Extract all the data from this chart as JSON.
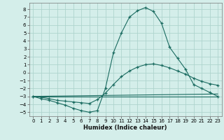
{
  "xlabel": "Humidex (Indice chaleur)",
  "background_color": "#d4eeea",
  "grid_color": "#aed4ce",
  "line_color": "#1a6b60",
  "ylim": [
    -5.5,
    8.8
  ],
  "xlim": [
    -0.5,
    23.5
  ],
  "yticks": [
    -5,
    -4,
    -3,
    -2,
    -1,
    0,
    1,
    2,
    3,
    4,
    5,
    6,
    7,
    8
  ],
  "xticks": [
    0,
    1,
    2,
    3,
    4,
    5,
    6,
    7,
    8,
    9,
    10,
    11,
    12,
    13,
    14,
    15,
    16,
    17,
    18,
    19,
    20,
    21,
    22,
    23
  ],
  "series": [
    {
      "x": [
        0,
        1,
        2,
        3,
        4,
        5,
        6,
        7,
        8,
        9,
        10,
        11,
        12,
        13,
        14,
        15,
        16,
        17,
        18,
        19,
        20,
        21,
        22,
        23
      ],
      "y": [
        -3,
        -3.3,
        -3.5,
        -3.8,
        -4.1,
        -4.5,
        -4.8,
        -5.0,
        -4.8,
        -2.0,
        2.5,
        5.0,
        7.0,
        7.8,
        8.2,
        7.7,
        6.2,
        3.2,
        1.8,
        0.4,
        -1.5,
        -2.0,
        -2.5,
        -3.0
      ],
      "marker": true
    },
    {
      "x": [
        0,
        1,
        2,
        3,
        4,
        5,
        6,
        7,
        8,
        9,
        10,
        11,
        12,
        13,
        14,
        15,
        16,
        17,
        18,
        19,
        20,
        21,
        22,
        23
      ],
      "y": [
        -3,
        -3.1,
        -3.3,
        -3.5,
        -3.6,
        -3.7,
        -3.8,
        -3.9,
        -3.4,
        -2.6,
        -1.5,
        -0.5,
        0.2,
        0.7,
        1.0,
        1.1,
        0.9,
        0.6,
        0.2,
        -0.2,
        -0.7,
        -1.1,
        -1.4,
        -1.6
      ],
      "marker": true
    },
    {
      "x": [
        0,
        23
      ],
      "y": [
        -3,
        -3.0
      ],
      "marker": false
    },
    {
      "x": [
        0,
        23
      ],
      "y": [
        -3,
        -2.7
      ],
      "marker": false
    }
  ]
}
